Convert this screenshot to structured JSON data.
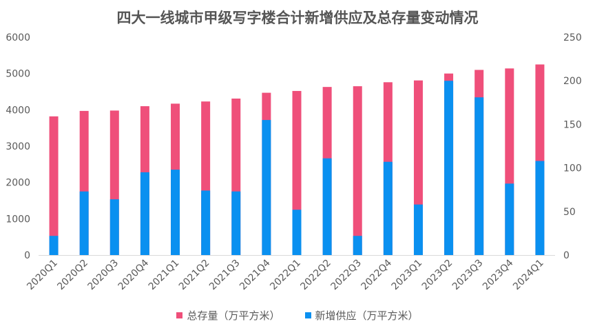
{
  "chart_data": {
    "type": "bar",
    "title": "四大一线城市甲级写字楼合计新增供应及总存量变动情况",
    "categories": [
      "2020Q1",
      "2020Q2",
      "2020Q3",
      "2020Q4",
      "2021Q1",
      "2021Q2",
      "2021Q3",
      "2021Q4",
      "2022Q1",
      "2022Q2",
      "2022Q3",
      "2022Q4",
      "2023Q1",
      "2023Q2",
      "2023Q3",
      "2023Q4",
      "2024Q1"
    ],
    "series": [
      {
        "name": "总存量（万平方米）",
        "axis": "left",
        "color": "#EF4F7A",
        "values": [
          3820,
          3970,
          3980,
          4100,
          4170,
          4230,
          4310,
          4470,
          4520,
          4630,
          4650,
          4760,
          4810,
          5000,
          5100,
          5140,
          5250
        ]
      },
      {
        "name": "新增供应（万平方米）",
        "axis": "right",
        "color": "#0A90F0",
        "values": [
          22,
          73,
          64,
          95,
          98,
          74,
          73,
          155,
          52,
          111,
          22,
          107,
          58,
          200,
          181,
          82,
          108
        ]
      }
    ],
    "y_left": {
      "min": 0,
      "max": 6000,
      "ticks": [
        "0",
        "1000",
        "2000",
        "3000",
        "4000",
        "5000",
        "6000"
      ]
    },
    "y_right": {
      "min": 0,
      "max": 250,
      "ticks": [
        "0",
        "50",
        "100",
        "150",
        "200",
        "250"
      ]
    },
    "legend_position": "bottom"
  }
}
